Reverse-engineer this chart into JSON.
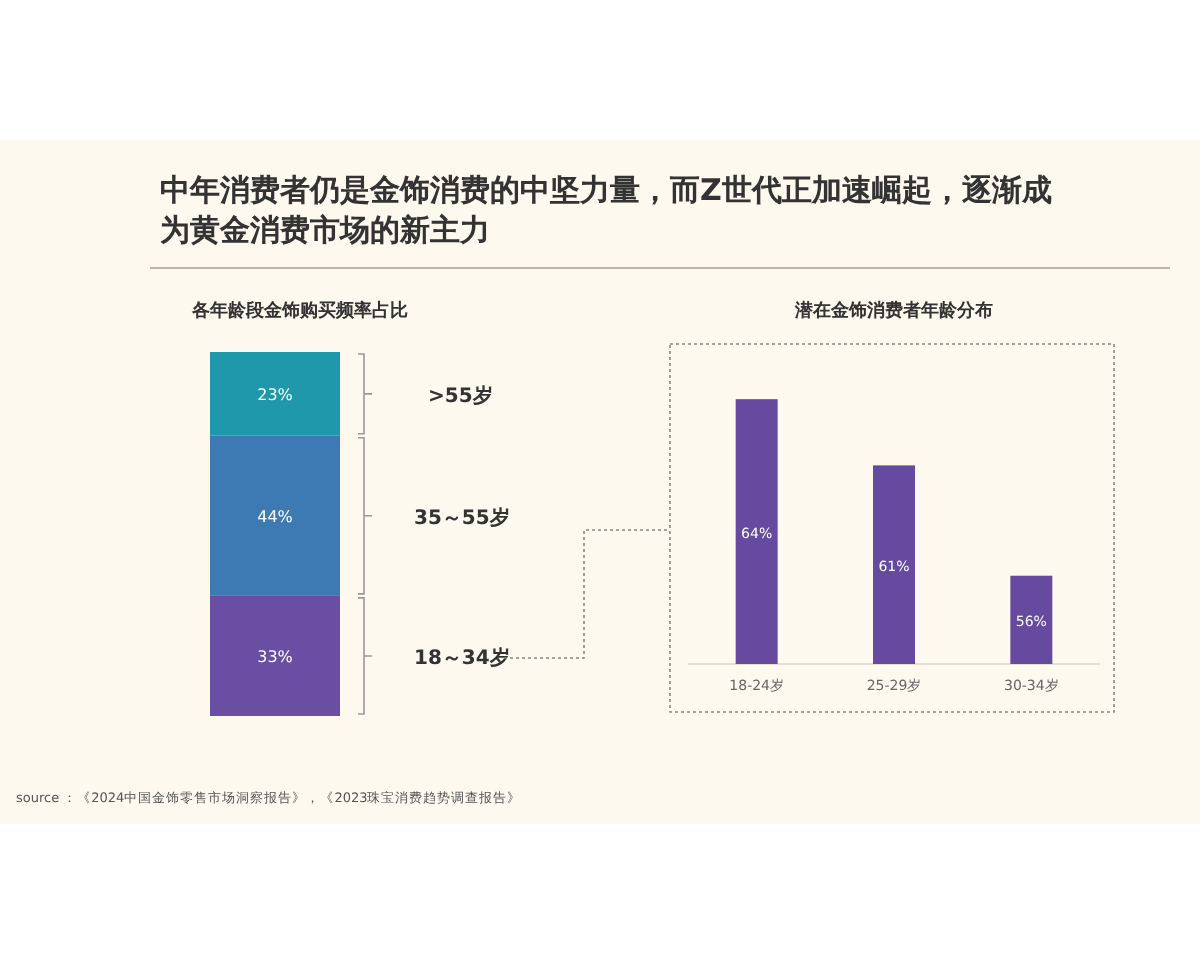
{
  "chart_data": [
    {
      "type": "bar",
      "stacked": true,
      "title": "中年消费者仍是金饰消费的中坚力量，而Z世代正加速崛起，逐渐成为黄金消费市场的新主力",
      "subtitle": "各年龄段金饰购买频率占比",
      "categories": [
        null
      ],
      "ylim": [
        0,
        100
      ],
      "tick_labels": false,
      "series": [
        {
          "name": "18～34岁",
          "color": "#6a4ea3",
          "values": [
            33
          ],
          "value_labels": [
            "33%"
          ]
        },
        {
          "name": "35～55岁",
          "color": "#3d79b3",
          "values": [
            44
          ],
          "value_labels": [
            "44%"
          ]
        },
        {
          "name": ">55岁",
          "color": "#1e98aa",
          "values": [
            23
          ],
          "value_labels": [
            "23%"
          ]
        }
      ]
    },
    {
      "type": "bar",
      "title": "潜在金饰消费者年龄分布",
      "categories": [
        "18-24岁",
        "25-29岁",
        "30-34岁"
      ],
      "values": [
        64,
        61,
        56
      ],
      "value_labels": [
        "64%",
        "61%",
        "56%"
      ],
      "color": "#654aa0",
      "ylim": [
        52,
        66.5
      ],
      "tick_labels": "x",
      "annotations": [
        "source ：《2024中国金饰零售市场洞察报告》，《2023珠宝消费趋势调查报告》"
      ]
    }
  ]
}
